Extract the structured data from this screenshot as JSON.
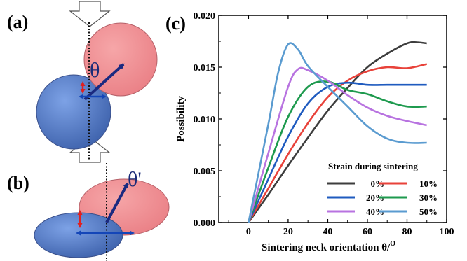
{
  "panels": {
    "a": "(a)",
    "b": "(b)",
    "c": "(c)"
  },
  "schematic": {
    "theta_a": "θ",
    "theta_b": "θ'",
    "colors": {
      "blue_particle": "#4f79c9",
      "red_particle": "#f08f93",
      "arrow": "#1b2a80",
      "red_arrow": "#e02020"
    }
  },
  "chart_data": {
    "type": "line",
    "xlabel": "Sintering neck orientation θ/",
    "xlabel_sup": "O",
    "ylabel": "Possibility",
    "xlim": [
      -15,
      100
    ],
    "ylim": [
      0,
      0.02
    ],
    "xticks": [
      "0",
      "20",
      "40",
      "60",
      "80",
      "100"
    ],
    "yticks": [
      "0.000",
      "0.005",
      "0.010",
      "0.015",
      "0.020"
    ],
    "legend_title": "Strain during sintering",
    "legend_position": "bottom-right",
    "grid": false,
    "series": [
      {
        "name": "0%",
        "color": "#3d3d3d",
        "x": [
          0,
          10,
          20,
          30,
          40,
          50,
          60,
          70,
          80,
          85,
          90
        ],
        "y": [
          0,
          0.0027,
          0.0055,
          0.0082,
          0.0108,
          0.013,
          0.015,
          0.0163,
          0.0173,
          0.0174,
          0.0173
        ]
      },
      {
        "name": "10%",
        "color": "#e8423a",
        "x": [
          0,
          10,
          20,
          30,
          40,
          50,
          60,
          70,
          80,
          90
        ],
        "y": [
          0,
          0.0033,
          0.0066,
          0.0096,
          0.0121,
          0.0137,
          0.0146,
          0.015,
          0.0149,
          0.0153
        ]
      },
      {
        "name": "20%",
        "color": "#1f5bbf",
        "x": [
          0,
          10,
          20,
          30,
          40,
          50,
          60,
          70,
          80,
          90
        ],
        "y": [
          0,
          0.0042,
          0.0083,
          0.0115,
          0.0131,
          0.0135,
          0.0133,
          0.0133,
          0.0133,
          0.0133
        ]
      },
      {
        "name": "30%",
        "color": "#1e9a4e",
        "x": [
          0,
          10,
          20,
          30,
          40,
          50,
          60,
          70,
          80,
          90
        ],
        "y": [
          0,
          0.0053,
          0.0102,
          0.0131,
          0.0136,
          0.0128,
          0.0124,
          0.0117,
          0.0112,
          0.0112
        ]
      },
      {
        "name": "40%",
        "color": "#b873e0",
        "x": [
          0,
          10,
          20,
          25,
          30,
          40,
          50,
          60,
          70,
          80,
          90
        ],
        "y": [
          0,
          0.0067,
          0.0131,
          0.0148,
          0.0147,
          0.0137,
          0.0123,
          0.0111,
          0.0103,
          0.0098,
          0.0094
        ]
      },
      {
        "name": "50%",
        "color": "#5a9bd0",
        "x": [
          0,
          10,
          15,
          20,
          25,
          30,
          40,
          50,
          60,
          70,
          80,
          90
        ],
        "y": [
          0,
          0.0095,
          0.0145,
          0.0172,
          0.0167,
          0.0151,
          0.0131,
          0.0112,
          0.0093,
          0.0081,
          0.0077,
          0.0077
        ]
      }
    ]
  }
}
